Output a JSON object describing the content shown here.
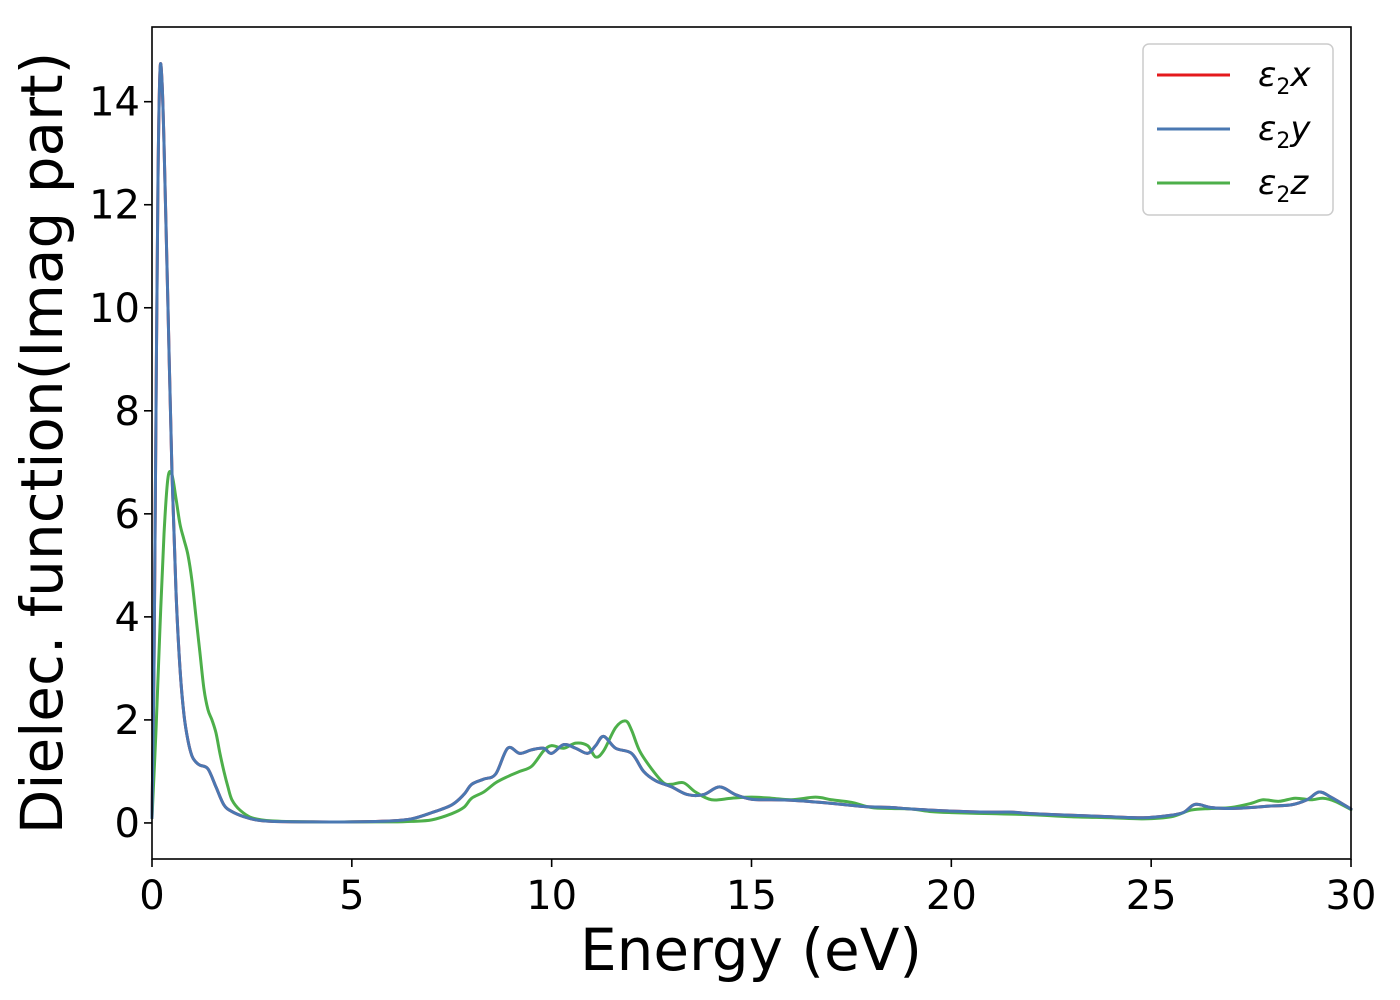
{
  "chart_data": {
    "type": "line",
    "xlabel": "Energy (eV)",
    "ylabel": "Dielec. function(Imag part)",
    "xlim": [
      0,
      30
    ],
    "ylim": [
      -0.7,
      15.45
    ],
    "xticks": [
      0,
      5,
      10,
      15,
      20,
      25,
      30
    ],
    "yticks": [
      0,
      2,
      4,
      6,
      8,
      10,
      12,
      14
    ],
    "grid": false,
    "legend_position": "top-right",
    "series": [
      {
        "name": "ε2x",
        "legend": {
          "base": "ε",
          "sub": "2",
          "axis": "x"
        },
        "color": "#e41a1c",
        "x": [
          0,
          0.05,
          0.1,
          0.15,
          0.2,
          0.25,
          0.3,
          0.4,
          0.5,
          0.6,
          0.7,
          0.8,
          0.9,
          1.0,
          1.1,
          1.2,
          1.4,
          1.6,
          1.8,
          2.0,
          2.3,
          2.6,
          3.0,
          4.0,
          5.0,
          6.0,
          6.5,
          7.0,
          7.5,
          7.8,
          8.0,
          8.3,
          8.6,
          8.9,
          9.2,
          9.5,
          9.8,
          10.0,
          10.3,
          10.6,
          10.9,
          11.1,
          11.3,
          11.6,
          12.0,
          12.3,
          12.6,
          13.0,
          13.4,
          13.8,
          14.2,
          14.6,
          15.0,
          15.5,
          16.0,
          17.0,
          17.8,
          18.5,
          19.0,
          20.0,
          21.0,
          21.5,
          22.0,
          23.0,
          24.0,
          24.8,
          25.4,
          25.8,
          26.1,
          26.5,
          27.0,
          27.5,
          28.0,
          28.5,
          28.9,
          29.2,
          29.5,
          30.0
        ],
        "y": [
          0.1,
          3.0,
          8.0,
          12.5,
          14.6,
          14.4,
          13.2,
          10.0,
          6.8,
          4.5,
          3.0,
          2.1,
          1.6,
          1.3,
          1.18,
          1.12,
          1.05,
          0.7,
          0.35,
          0.22,
          0.12,
          0.06,
          0.03,
          0.02,
          0.02,
          0.04,
          0.08,
          0.2,
          0.35,
          0.55,
          0.75,
          0.85,
          0.95,
          1.45,
          1.35,
          1.42,
          1.45,
          1.35,
          1.52,
          1.45,
          1.35,
          1.5,
          1.68,
          1.45,
          1.35,
          1.0,
          0.82,
          0.7,
          0.55,
          0.55,
          0.7,
          0.55,
          0.46,
          0.45,
          0.44,
          0.38,
          0.32,
          0.3,
          0.27,
          0.23,
          0.21,
          0.21,
          0.18,
          0.15,
          0.12,
          0.1,
          0.14,
          0.2,
          0.36,
          0.3,
          0.28,
          0.3,
          0.33,
          0.35,
          0.45,
          0.6,
          0.5,
          0.27
        ]
      },
      {
        "name": "ε2y",
        "legend": {
          "base": "ε",
          "sub": "2",
          "axis": "y"
        },
        "color": "#4a78b2",
        "x": [
          0,
          0.05,
          0.1,
          0.15,
          0.2,
          0.25,
          0.3,
          0.4,
          0.5,
          0.6,
          0.7,
          0.8,
          0.9,
          1.0,
          1.1,
          1.2,
          1.4,
          1.6,
          1.8,
          2.0,
          2.3,
          2.6,
          3.0,
          4.0,
          5.0,
          6.0,
          6.5,
          7.0,
          7.5,
          7.8,
          8.0,
          8.3,
          8.6,
          8.9,
          9.2,
          9.5,
          9.8,
          10.0,
          10.3,
          10.6,
          10.9,
          11.1,
          11.3,
          11.6,
          12.0,
          12.3,
          12.6,
          13.0,
          13.4,
          13.8,
          14.2,
          14.6,
          15.0,
          15.5,
          16.0,
          17.0,
          17.8,
          18.5,
          19.0,
          20.0,
          21.0,
          21.5,
          22.0,
          23.0,
          24.0,
          24.8,
          25.4,
          25.8,
          26.1,
          26.5,
          27.0,
          27.5,
          28.0,
          28.5,
          28.9,
          29.2,
          29.5,
          30.0
        ],
        "y": [
          0.1,
          3.0,
          8.0,
          12.5,
          14.6,
          14.4,
          13.2,
          10.0,
          6.8,
          4.5,
          3.0,
          2.1,
          1.6,
          1.3,
          1.18,
          1.12,
          1.05,
          0.7,
          0.35,
          0.22,
          0.12,
          0.06,
          0.03,
          0.02,
          0.02,
          0.04,
          0.08,
          0.2,
          0.35,
          0.55,
          0.75,
          0.85,
          0.95,
          1.45,
          1.35,
          1.42,
          1.45,
          1.35,
          1.52,
          1.45,
          1.35,
          1.5,
          1.68,
          1.45,
          1.35,
          1.0,
          0.82,
          0.7,
          0.55,
          0.55,
          0.7,
          0.55,
          0.46,
          0.45,
          0.44,
          0.38,
          0.32,
          0.3,
          0.27,
          0.23,
          0.21,
          0.21,
          0.18,
          0.15,
          0.12,
          0.1,
          0.14,
          0.2,
          0.36,
          0.3,
          0.28,
          0.3,
          0.33,
          0.35,
          0.45,
          0.6,
          0.5,
          0.27
        ]
      },
      {
        "name": "ε2z",
        "legend": {
          "base": "ε",
          "sub": "2",
          "axis": "z"
        },
        "color": "#4daf4a",
        "x": [
          0,
          0.1,
          0.2,
          0.3,
          0.4,
          0.5,
          0.6,
          0.7,
          0.8,
          0.9,
          1.0,
          1.1,
          1.2,
          1.3,
          1.4,
          1.5,
          1.6,
          1.7,
          1.8,
          1.9,
          2.0,
          2.2,
          2.5,
          3.0,
          4.0,
          5.0,
          6.0,
          6.5,
          7.0,
          7.5,
          7.8,
          8.0,
          8.3,
          8.6,
          8.9,
          9.2,
          9.5,
          9.8,
          10.0,
          10.3,
          10.6,
          10.9,
          11.1,
          11.3,
          11.6,
          11.85,
          12.0,
          12.2,
          12.5,
          12.8,
          13.0,
          13.3,
          13.6,
          14.0,
          14.5,
          15.0,
          15.5,
          16.0,
          16.6,
          17.0,
          17.5,
          18.0,
          18.5,
          19.0,
          19.5,
          20.0,
          21.0,
          22.0,
          23.0,
          24.0,
          24.8,
          25.5,
          26.0,
          26.5,
          27.0,
          27.5,
          27.8,
          28.2,
          28.6,
          29.0,
          29.3,
          29.6,
          30.0
        ],
        "y": [
          0.1,
          1.8,
          3.8,
          5.6,
          6.7,
          6.75,
          6.3,
          5.8,
          5.5,
          5.2,
          4.7,
          4.0,
          3.3,
          2.6,
          2.2,
          2.0,
          1.75,
          1.35,
          1.0,
          0.7,
          0.45,
          0.25,
          0.1,
          0.04,
          0.02,
          0.02,
          0.02,
          0.03,
          0.06,
          0.18,
          0.3,
          0.48,
          0.6,
          0.78,
          0.9,
          1.0,
          1.1,
          1.4,
          1.5,
          1.45,
          1.55,
          1.5,
          1.28,
          1.4,
          1.85,
          1.98,
          1.8,
          1.4,
          1.05,
          0.78,
          0.75,
          0.78,
          0.6,
          0.45,
          0.48,
          0.5,
          0.48,
          0.45,
          0.5,
          0.45,
          0.4,
          0.3,
          0.28,
          0.27,
          0.22,
          0.2,
          0.18,
          0.16,
          0.12,
          0.1,
          0.08,
          0.12,
          0.25,
          0.28,
          0.3,
          0.38,
          0.45,
          0.42,
          0.48,
          0.45,
          0.48,
          0.42,
          0.26
        ]
      }
    ]
  }
}
